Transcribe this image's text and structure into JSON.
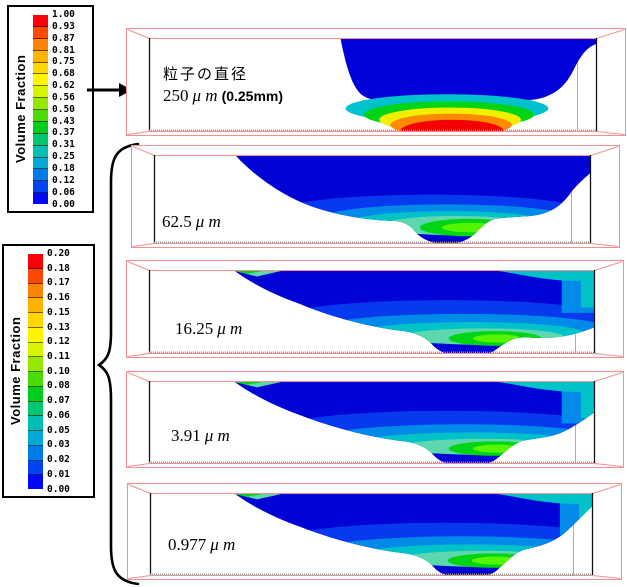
{
  "legend_top": {
    "title": "Volume Fraction",
    "ticks": [
      "1.00",
      "0.93",
      "0.87",
      "0.81",
      "0.75",
      "0.68",
      "0.62",
      "0.56",
      "0.50",
      "0.43",
      "0.37",
      "0.31",
      "0.25",
      "0.18",
      "0.12",
      "0.06",
      "0.00"
    ]
  },
  "legend_bottom": {
    "title": "Volume Fraction",
    "ticks": [
      "0.20",
      "0.18",
      "0.17",
      "0.16",
      "0.15",
      "0.13",
      "0.12",
      "0.11",
      "0.10",
      "0.08",
      "0.07",
      "0.06",
      "0.05",
      "0.03",
      "0.02",
      "0.01",
      "0.00"
    ]
  },
  "colormap_top_to_bottom": [
    "#fb0007",
    "#fc4800",
    "#fd8400",
    "#feb300",
    "#fed800",
    "#fef600",
    "#d8f400",
    "#97e800",
    "#4cdb00",
    "#00cd1b",
    "#00c671",
    "#00bfb2",
    "#00a9d8",
    "#007cea",
    "#0043f4",
    "#0008fb"
  ],
  "panels": [
    {
      "title": "粒子の直径",
      "value": "250",
      "unit": "μ m",
      "extra": "(0.25mm)",
      "legend": "top",
      "shape": "coarse"
    },
    {
      "title": "",
      "value": "62.5",
      "unit": "μ m",
      "extra": "",
      "legend": "bottom",
      "shape": "dispersed"
    },
    {
      "title": "",
      "value": "16.25",
      "unit": "μ m",
      "extra": "",
      "legend": "bottom",
      "shape": "fine3"
    },
    {
      "title": "",
      "value": "3.91",
      "unit": "μ m",
      "extra": "",
      "legend": "bottom",
      "shape": "fine4"
    },
    {
      "title": "",
      "value": "0.977",
      "unit": "μ m",
      "extra": "",
      "legend": "bottom",
      "shape": "fine5"
    }
  ],
  "chart_data": {
    "type": "heatmap",
    "title": "粒子の直径 (particle diameter) — Volume Fraction contour slices in a rectangular basin",
    "legend_position": "left",
    "colorbar_top": {
      "label": "Volume Fraction",
      "range": [
        0.0,
        1.0
      ],
      "ticks": [
        1.0,
        0.93,
        0.87,
        0.81,
        0.75,
        0.68,
        0.62,
        0.56,
        0.5,
        0.43,
        0.37,
        0.31,
        0.25,
        0.18,
        0.12,
        0.06,
        0.0
      ],
      "applies_to": "250 μm panel (black arrow)"
    },
    "colorbar_bottom": {
      "label": "Volume Fraction",
      "range": [
        0.0,
        0.2
      ],
      "ticks": [
        0.2,
        0.18,
        0.17,
        0.16,
        0.15,
        0.13,
        0.12,
        0.11,
        0.1,
        0.08,
        0.07,
        0.06,
        0.05,
        0.03,
        0.02,
        0.01,
        0.0
      ],
      "applies_to": "62.5, 16.25, 3.91, 0.977 μm panels (curly brace)"
    },
    "panels": [
      {
        "particle_diameter": "250 μ m (0.25mm)",
        "colorbar_range": [
          0.0,
          1.0
        ],
        "pattern": "clear-water blue region above; thin stratified cyan-green-yellow-orange-red layers at bed, red peak ≈1.00 at bottom centre"
      },
      {
        "particle_diameter": "62.5 μ m",
        "colorbar_range": [
          0.0,
          0.2
        ],
        "pattern": "suspended plume; concentration grows toward bed through azure, cyan, pale-aqua to green core ≈0.10–0.12 near bottom centre-right"
      },
      {
        "particle_diameter": "16.25 μ m",
        "colorbar_range": [
          0.0,
          0.2
        ],
        "pattern": "dispersed plume reaching upper-right outlet; green core ≈0.10 near bed centre-right"
      },
      {
        "particle_diameter": "3.91 μ m",
        "colorbar_range": [
          0.0,
          0.2
        ],
        "pattern": "dispersed plume; green core ≈0.10 near bed centre-right"
      },
      {
        "particle_diameter": "0.977 μ m",
        "colorbar_range": [
          0.0,
          0.2
        ],
        "pattern": "dispersed plume; green core ≈0.10 near bed centre-right"
      }
    ]
  }
}
